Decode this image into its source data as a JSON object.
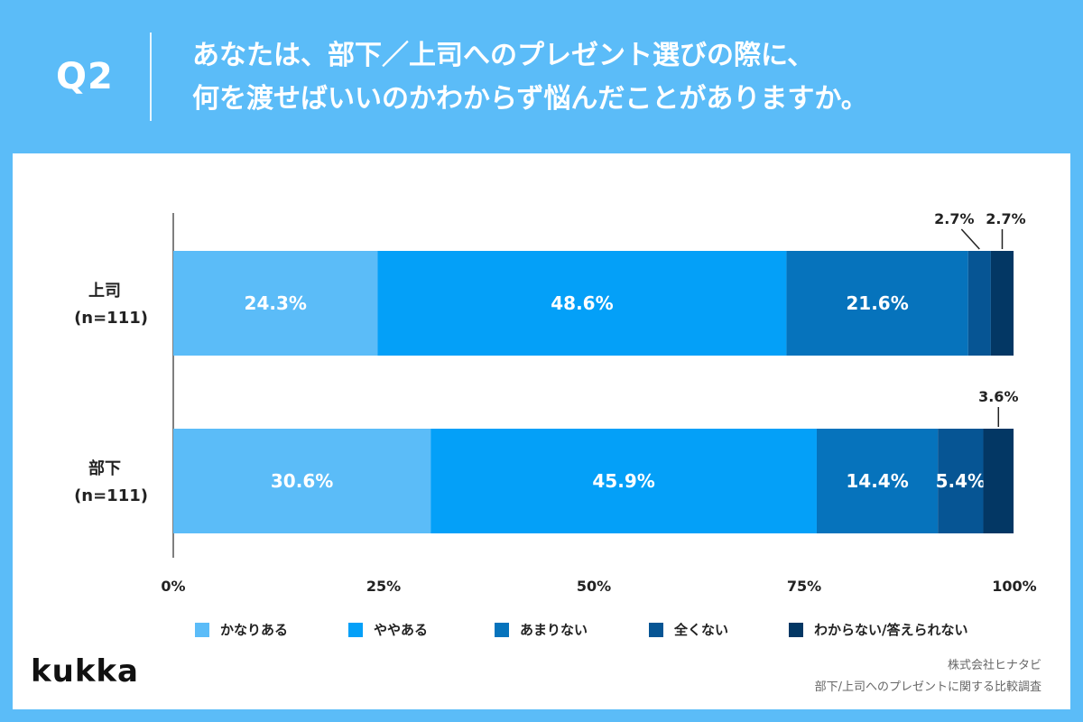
{
  "header": {
    "q_label": "Q2",
    "title_line1": "あなたは、部下／上司へのプレゼント選びの際に、",
    "title_line2": "何を渡せばいいのかわからず悩んだことがありますか。"
  },
  "footer": {
    "brand": "kukka",
    "source_line1": "株式会社ヒナタビ",
    "source_line2": "部下/上司へのプレゼントに関する比較調査"
  },
  "colors": {
    "background": "#5bbcf8",
    "panel": "#ffffff",
    "series": [
      "#5bbcf8",
      "#04a0f8",
      "#0673bc",
      "#065594",
      "#033764"
    ]
  },
  "chart_data": {
    "type": "bar",
    "orientation": "horizontal",
    "stacked": true,
    "categories": [
      {
        "label": "上司",
        "sublabel": "(n=111)"
      },
      {
        "label": "部下",
        "sublabel": "(n=111)"
      }
    ],
    "series": [
      {
        "name": "かなりある",
        "values": [
          24.3,
          30.6
        ],
        "labels": [
          "24.3%",
          "30.6%"
        ]
      },
      {
        "name": "ややある",
        "values": [
          48.6,
          45.9
        ],
        "labels": [
          "48.6%",
          "45.9%"
        ]
      },
      {
        "name": "あまりない",
        "values": [
          21.6,
          14.4
        ],
        "labels": [
          "21.6%",
          "14.4%"
        ]
      },
      {
        "name": "全くない",
        "values": [
          2.7,
          5.4
        ],
        "labels": [
          "2.7%",
          "5.4%"
        ]
      },
      {
        "name": "わからない/答えられない",
        "values": [
          2.7,
          3.6
        ],
        "labels": [
          "2.7%",
          "3.6%"
        ]
      }
    ],
    "xlim": [
      0,
      100
    ],
    "xticks": [
      0,
      25,
      50,
      75,
      100
    ],
    "xtick_labels": [
      "0%",
      "25%",
      "50%",
      "75%",
      "100%"
    ],
    "legend_position": "bottom",
    "grid": false
  }
}
